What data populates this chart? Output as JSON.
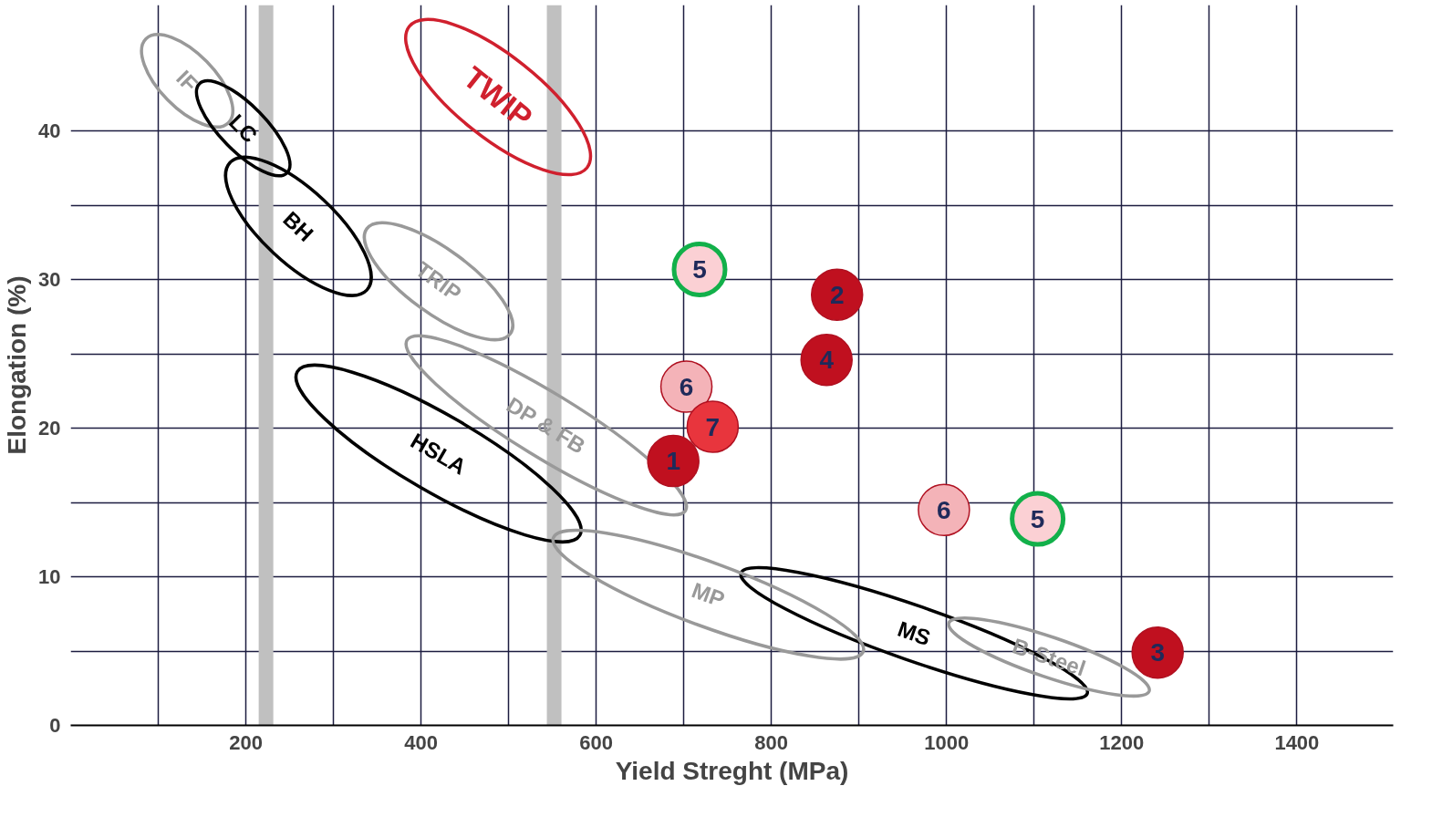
{
  "chart_data": {
    "type": "scatter",
    "xlabel": "Yield Streght (MPa)",
    "ylabel": "Elongation (%)",
    "xlim": [
      0,
      1510
    ],
    "ylim": [
      0,
      48.5
    ],
    "xticks": [
      {
        "value": 100,
        "label": null
      },
      200,
      {
        "value": 300,
        "label": null
      },
      400,
      {
        "value": 500,
        "label": null
      },
      600,
      {
        "value": 700,
        "label": null
      },
      800,
      {
        "value": 900,
        "label": null
      },
      1000,
      {
        "value": 1100,
        "label": null
      },
      1200,
      {
        "value": 1300,
        "label": null
      },
      1400
    ],
    "yticks": [
      0,
      {
        "value": 5,
        "label": null
      },
      10,
      {
        "value": 15,
        "label": null
      },
      20,
      {
        "value": 25,
        "label": null
      },
      30,
      {
        "value": 35,
        "label": null
      },
      40
    ],
    "grid": true,
    "annotations": [
      {
        "text": "1",
        "x": 688,
        "y": 17.8
      },
      {
        "text": "2",
        "x": 875,
        "y": 29.0
      },
      {
        "text": "3",
        "x": 1241,
        "y": 4.9
      },
      {
        "text": "4",
        "x": 863,
        "y": 24.6
      },
      {
        "text": "6",
        "x": 703,
        "y": 22.8
      },
      {
        "text": "6",
        "x": 997,
        "y": 14.5
      },
      {
        "text": "7",
        "x": 733,
        "y": 20.1
      },
      {
        "text": "5",
        "x": 718,
        "y": 30.7
      },
      {
        "text": "5",
        "x": 1104,
        "y": 13.9
      },
      "TWIP",
      "IF",
      "LC",
      "BH",
      "TRIP",
      "HSLA",
      "DP & FB",
      "MS",
      "MP",
      "B-Steel"
    ],
    "ref_lines": [
      {
        "axis": "x",
        "value": 223,
        "label": null,
        "color": "#c0c0c0"
      },
      {
        "axis": "x",
        "value": 552,
        "label": null,
        "color": "#c0c0c0"
      }
    ],
    "series": [
      {
        "marker": "circle",
        "color": "#c0101f",
        "x": [
          688,
          875,
          1241,
          863
        ],
        "values": [
          17.8,
          29.0,
          4.9,
          24.6
        ]
      },
      {
        "marker": "circle",
        "color": "#f4b3b8",
        "x": [
          703,
          997
        ],
        "values": [
          22.8,
          14.5
        ]
      },
      {
        "marker": "circle",
        "color": "#e8353d",
        "x": [
          733
        ],
        "values": [
          20.1
        ]
      },
      {
        "marker": "circle",
        "color": "#12b04a",
        "x": [
          718,
          1104
        ],
        "values": [
          30.7,
          13.9
        ]
      }
    ]
  }
}
